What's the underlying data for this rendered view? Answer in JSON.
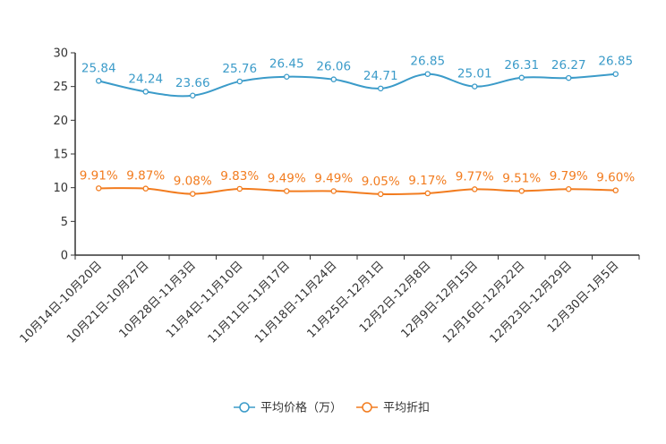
{
  "chart_data": {
    "type": "line",
    "title": "",
    "xlabel": "",
    "ylabel": "",
    "ylim": [
      0,
      30
    ],
    "yticks": [
      0,
      5,
      10,
      15,
      20,
      25,
      30
    ],
    "grid": false,
    "legend_position": "bottom-center",
    "categories": [
      "10月14日-10月20日",
      "10月21日-10月27日",
      "10月28日-11月3日",
      "11月4日-11月10日",
      "11月11日-11月17日",
      "11月18日-11月24日",
      "11月25日-12月1日",
      "12月2日-12月8日",
      "12月9日-12月15日",
      "12月16日-12月22日",
      "12月23日-12月29日",
      "12月30日-1月5日"
    ],
    "series": [
      {
        "name": "平均价格（万）",
        "color": "#3b9bc9",
        "values": [
          25.84,
          24.24,
          23.66,
          25.76,
          26.45,
          26.06,
          24.71,
          26.85,
          25.01,
          26.31,
          26.27,
          26.85
        ],
        "labels": [
          "25.84",
          "24.24",
          "23.66",
          "25.76",
          "26.45",
          "26.06",
          "24.71",
          "26.85",
          "25.01",
          "26.31",
          "26.27",
          "26.85"
        ]
      },
      {
        "name": "平均折扣",
        "color": "#f27c1f",
        "values": [
          9.91,
          9.87,
          9.08,
          9.83,
          9.49,
          9.49,
          9.05,
          9.17,
          9.77,
          9.51,
          9.79,
          9.6
        ],
        "labels": [
          "9.91%",
          "9.87%",
          "9.08%",
          "9.83%",
          "9.49%",
          "9.49%",
          "9.05%",
          "9.17%",
          "9.77%",
          "9.51%",
          "9.79%",
          "9.60%"
        ]
      }
    ]
  }
}
